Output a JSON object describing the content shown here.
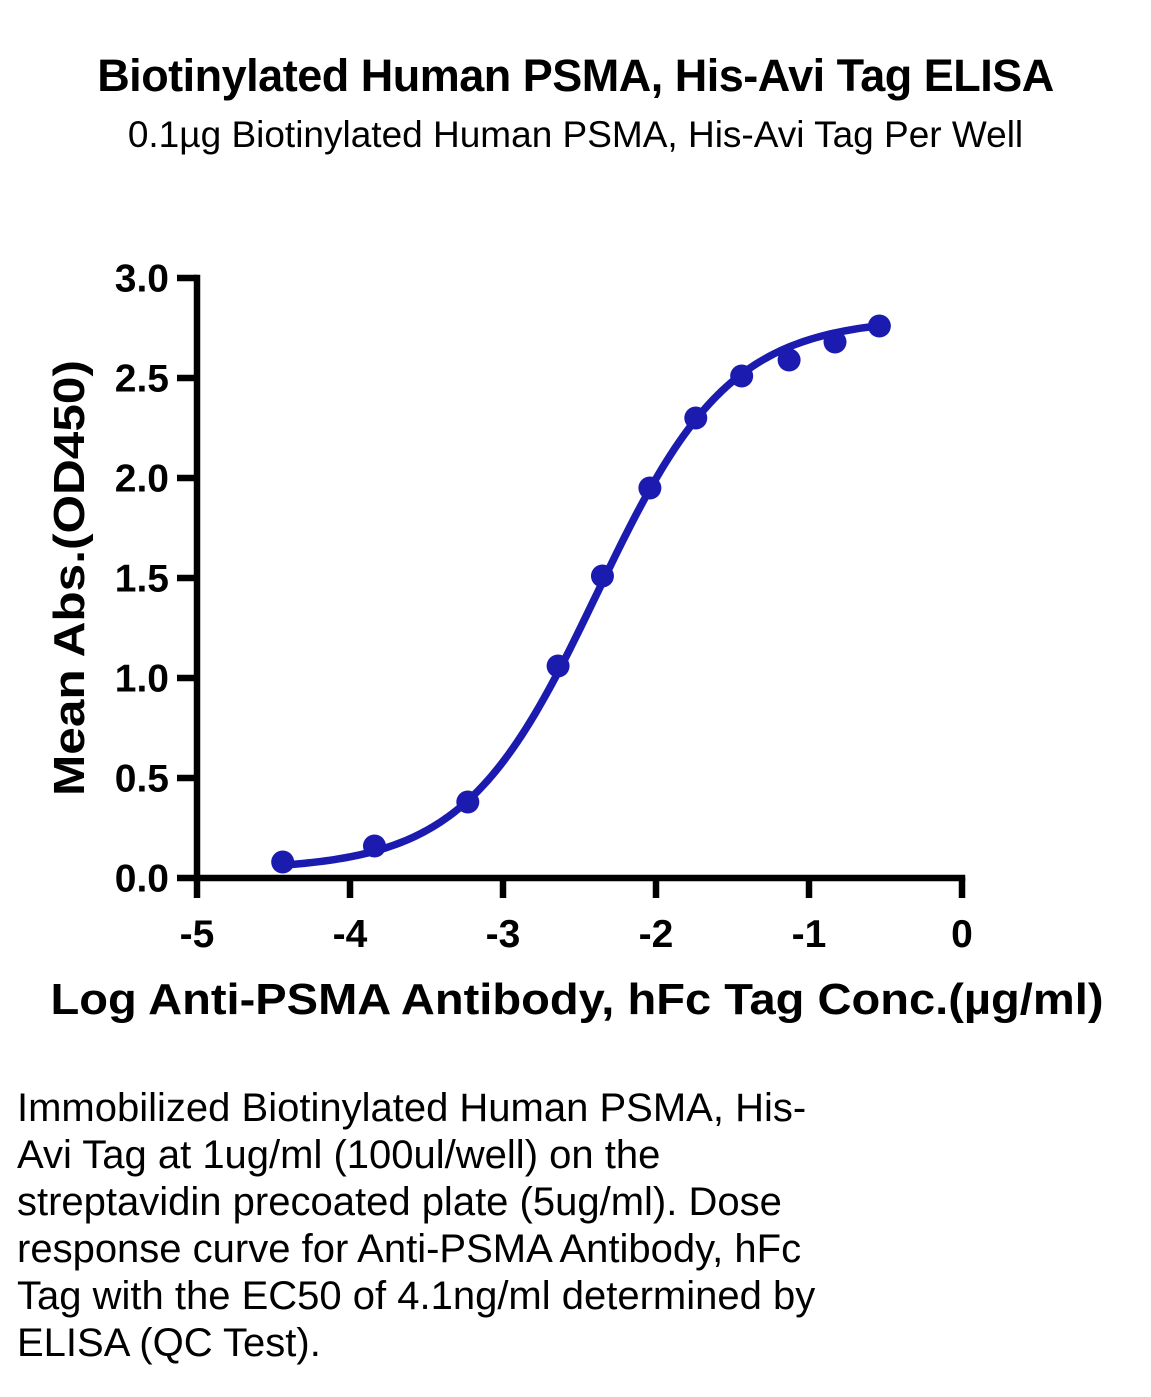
{
  "page": {
    "title": "Biotinylated Human PSMA, His-Avi Tag ELISA",
    "subtitle": "0.1µg Biotinylated Human PSMA, His-Avi Tag Per Well",
    "caption_lines": [
      "Immobilized Biotinylated Human PSMA, His-",
      "Avi Tag at 1ug/ml (100ul/well) on the",
      "streptavidin precoated plate (5ug/ml). Dose",
      "response curve for Anti-PSMA Antibody, hFc",
      "Tag with the EC50 of 4.1ng/ml determined by",
      "ELISA (QC Test)."
    ]
  },
  "chart_data": {
    "type": "scatter",
    "title": "Biotinylated Human PSMA, His-Avi Tag ELISA",
    "subtitle": "0.1µg Biotinylated Human PSMA, His-Avi Tag Per Well",
    "xlabel": "Log Anti-PSMA Antibody, hFc Tag Conc.(µg/ml)",
    "ylabel": "Mean Abs.(OD450)",
    "xlim": [
      -5,
      0
    ],
    "ylim": [
      0,
      3
    ],
    "x_ticks": [
      -5,
      -4,
      -3,
      -2,
      -1,
      0
    ],
    "x_tick_labels": [
      "-5",
      "-4",
      "-3",
      "-2",
      "-1",
      "0"
    ],
    "y_ticks": [
      0.0,
      0.5,
      1.0,
      1.5,
      2.0,
      2.5,
      3.0
    ],
    "y_tick_labels": [
      "0.0",
      "0.5",
      "1.0",
      "1.5",
      "2.0",
      "2.5",
      "3.0"
    ],
    "grid": false,
    "legend": "none",
    "series": [
      {
        "name": "Anti-PSMA Antibody, hFc Tag",
        "marker": "circle",
        "color": "#1b1baf",
        "x": [
          -4.44,
          -3.84,
          -3.23,
          -2.64,
          -2.35,
          -2.04,
          -1.74,
          -1.44,
          -1.13,
          -0.83,
          -0.54
        ],
        "y": [
          0.08,
          0.16,
          0.38,
          1.06,
          1.51,
          1.95,
          2.3,
          2.51,
          2.59,
          2.68,
          2.76
        ]
      }
    ],
    "fit": {
      "model": "4PL",
      "bottom": 0.04,
      "top": 2.8,
      "log_ec50": -2.387,
      "hill": 1.0,
      "ec50_label": "EC50 of 4.1ng/ml"
    }
  }
}
